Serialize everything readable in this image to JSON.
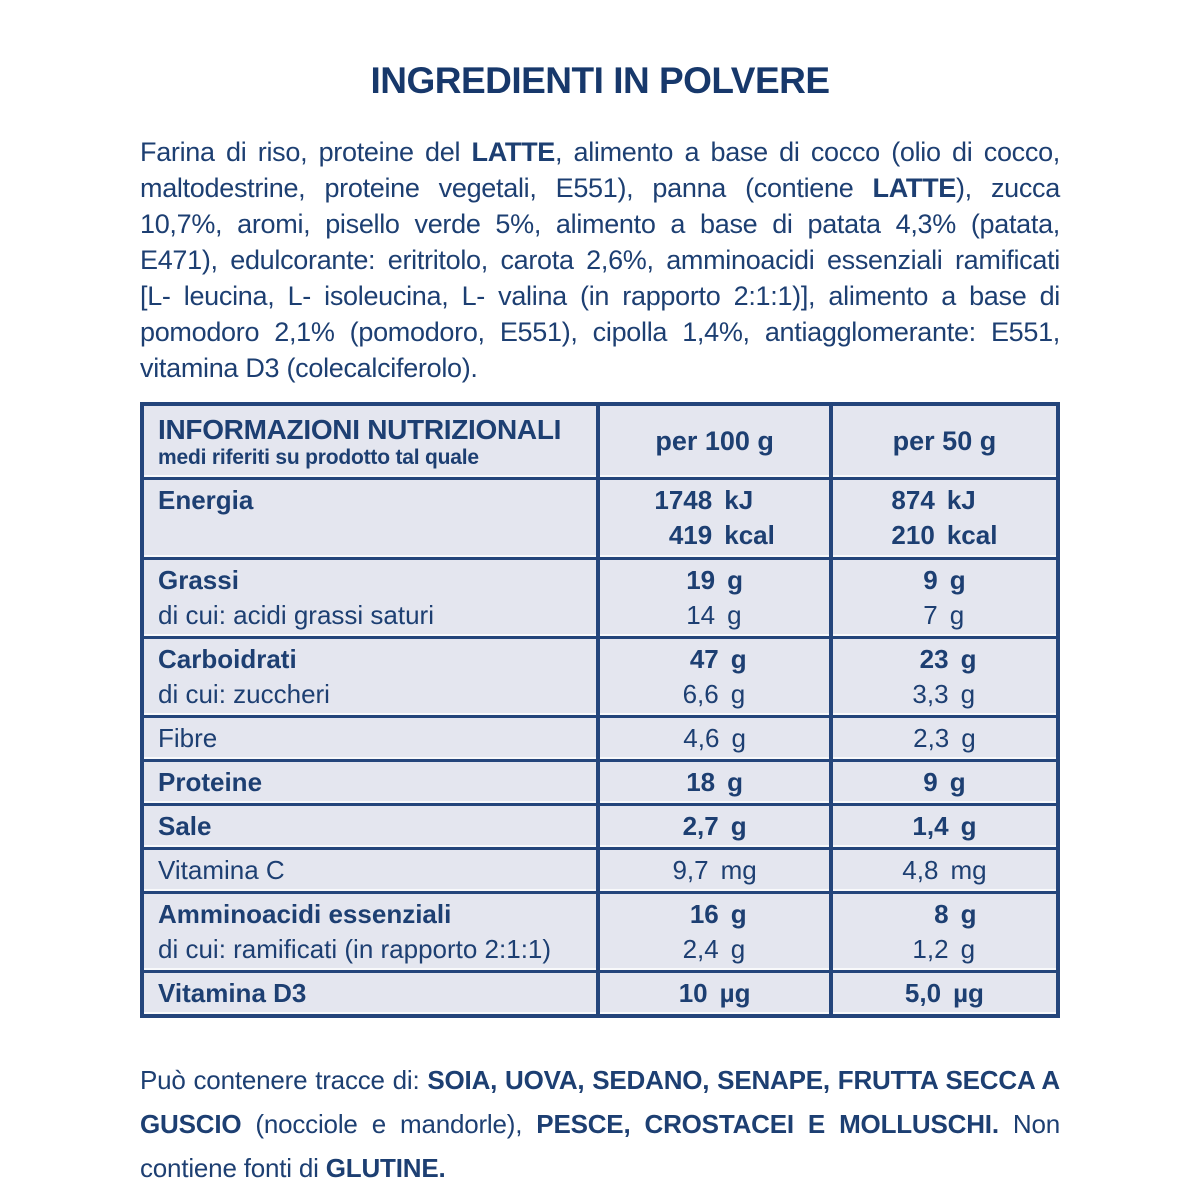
{
  "colors": {
    "text": "#1d3f72",
    "bold": "#17386b",
    "border": "#24457b",
    "cellbg": "#e4e6ef"
  },
  "title": "INGREDIENTI IN POLVERE",
  "ingredients": {
    "segments": [
      {
        "text": "Farina di riso, proteine del ",
        "bold": false
      },
      {
        "text": "LATTE",
        "bold": true
      },
      {
        "text": ", alimento a base di cocco (olio di cocco, maltodestrine, proteine vegetali, E551), panna (contiene ",
        "bold": false
      },
      {
        "text": "LATTE",
        "bold": true
      },
      {
        "text": "), zucca 10,7%, aromi, pisello verde 5%, alimento a base di patata 4,3% (patata, E471), edulcorante: eritritolo, carota 2,6%, amminoacidi essenziali ramificati [L- leucina, L- isoleucina, L- valina (in rapporto 2:1:1)], alimento a base di pomodoro 2,1% (pomodoro, E551), cipolla 1,4%, antiagglomerante: E551, vitamina D3 (colecalciferolo).",
        "bold": false
      }
    ]
  },
  "table": {
    "header": {
      "title": "INFORMAZIONI NUTRIZIONALI",
      "subtitle": "medi riferiti su prodotto tal quale",
      "col1": "per 100 g",
      "col2": "per 50 g"
    },
    "rows": [
      {
        "label": [
          {
            "t": "Energia",
            "b": true
          }
        ],
        "per100": [
          {
            "v": "1748",
            "u": "kJ",
            "b": true
          },
          {
            "v": "419",
            "u": "kcal",
            "b": true
          }
        ],
        "per50": [
          {
            "v": "874",
            "u": "kJ",
            "b": true
          },
          {
            "v": "210",
            "u": "kcal",
            "b": true
          }
        ]
      },
      {
        "label": [
          {
            "t": "Grassi",
            "b": true
          },
          {
            "t": "di cui: acidi grassi saturi",
            "b": false
          }
        ],
        "per100": [
          {
            "v": "19",
            "u": "g",
            "b": true
          },
          {
            "v": "14",
            "u": "g",
            "b": false
          }
        ],
        "per50": [
          {
            "v": "9",
            "u": "g",
            "b": true
          },
          {
            "v": "7",
            "u": "g",
            "b": false
          }
        ]
      },
      {
        "label": [
          {
            "t": "Carboidrati",
            "b": true
          },
          {
            "t": "di cui: zuccheri",
            "b": false
          }
        ],
        "per100": [
          {
            "v": "47",
            "u": "g",
            "b": true
          },
          {
            "v": "6,6",
            "u": "g",
            "b": false
          }
        ],
        "per50": [
          {
            "v": "23",
            "u": "g",
            "b": true
          },
          {
            "v": "3,3",
            "u": "g",
            "b": false
          }
        ]
      },
      {
        "label": [
          {
            "t": "Fibre",
            "b": false
          }
        ],
        "per100": [
          {
            "v": "4,6",
            "u": "g",
            "b": false
          }
        ],
        "per50": [
          {
            "v": "2,3",
            "u": "g",
            "b": false
          }
        ]
      },
      {
        "label": [
          {
            "t": "Proteine",
            "b": true
          }
        ],
        "per100": [
          {
            "v": "18",
            "u": "g",
            "b": true
          }
        ],
        "per50": [
          {
            "v": "9",
            "u": "g",
            "b": true
          }
        ]
      },
      {
        "label": [
          {
            "t": "Sale",
            "b": true
          }
        ],
        "per100": [
          {
            "v": "2,7",
            "u": "g",
            "b": true
          }
        ],
        "per50": [
          {
            "v": "1,4",
            "u": "g",
            "b": true
          }
        ]
      },
      {
        "label": [
          {
            "t": "Vitamina C",
            "b": false
          }
        ],
        "per100": [
          {
            "v": "9,7",
            "u": "mg",
            "b": false
          }
        ],
        "per50": [
          {
            "v": "4,8",
            "u": "mg",
            "b": false
          }
        ]
      },
      {
        "label": [
          {
            "t": "Amminoacidi essenziali",
            "b": true
          },
          {
            "t": "di cui: ramificati (in rapporto 2:1:1)",
            "b": false
          }
        ],
        "per100": [
          {
            "v": "16",
            "u": "g",
            "b": true
          },
          {
            "v": "2,4",
            "u": "g",
            "b": false
          }
        ],
        "per50": [
          {
            "v": "8",
            "u": "g",
            "b": true
          },
          {
            "v": "1,2",
            "u": "g",
            "b": false
          }
        ]
      },
      {
        "label": [
          {
            "t": "Vitamina D3",
            "b": true
          }
        ],
        "per100": [
          {
            "v": "10",
            "u": "µg",
            "b": true
          }
        ],
        "per50": [
          {
            "v": "5,0",
            "u": "µg",
            "b": true
          }
        ]
      }
    ]
  },
  "allergens": {
    "segments": [
      {
        "text": "Può contenere tracce di: ",
        "bold": false
      },
      {
        "text": "SOIA, UOVA, SEDANO, SENAPE, FRUTTA SECCA A GUSCIO",
        "bold": true
      },
      {
        "text": " (nocciole e mandorle), ",
        "bold": false
      },
      {
        "text": "PESCE, CROSTACEI E MOLLUSCHI.",
        "bold": true
      },
      {
        "text": " Non contiene fonti di ",
        "bold": false
      },
      {
        "text": "GLUTINE.",
        "bold": true
      }
    ]
  }
}
